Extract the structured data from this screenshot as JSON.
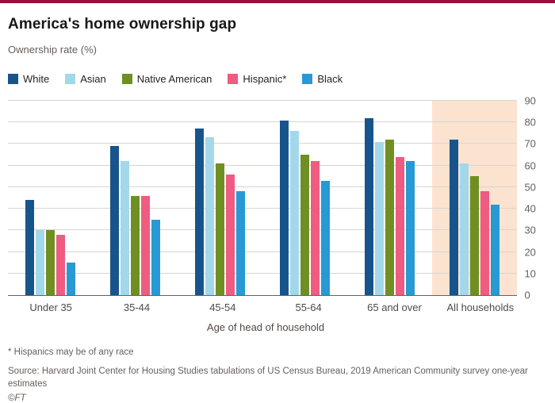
{
  "header": {
    "title": "America's home ownership gap",
    "subtitle": "Ownership rate (%)"
  },
  "chart_data": {
    "type": "bar",
    "title": "America's home ownership gap",
    "ylabel": "Ownership rate (%)",
    "xlabel": "Age of head of household",
    "ylim": [
      0,
      90
    ],
    "ytick_step": 10,
    "grid": true,
    "legend_position": "top",
    "axis_side": "right",
    "highlight_category": "All households",
    "highlight_color": "#fbe3d0",
    "categories": [
      "Under 35",
      "35-44",
      "45-54",
      "55-64",
      "65 and over",
      "All households"
    ],
    "series": [
      {
        "name": "White",
        "color": "#17548c",
        "values": [
          44,
          69,
          77,
          81,
          82,
          72
        ]
      },
      {
        "name": "Asian",
        "color": "#a3d8ea",
        "values": [
          30,
          62,
          73,
          76,
          71,
          61
        ]
      },
      {
        "name": "Native American",
        "color": "#6f8f23",
        "values": [
          30,
          46,
          61,
          65,
          72,
          55
        ]
      },
      {
        "name": "Hispanic*",
        "color": "#ef5b81",
        "values": [
          28,
          46,
          56,
          62,
          64,
          48
        ]
      },
      {
        "name": "Black",
        "color": "#2799d3",
        "values": [
          15,
          35,
          48,
          53,
          62,
          42
        ]
      }
    ]
  },
  "footer": {
    "note": "* Hispanics may be of any race",
    "source": "Source: Harvard Joint Center for Housing Studies tabulations of US Census Bureau, 2019 American Community survey one-year estimates",
    "credit": "©FT"
  }
}
